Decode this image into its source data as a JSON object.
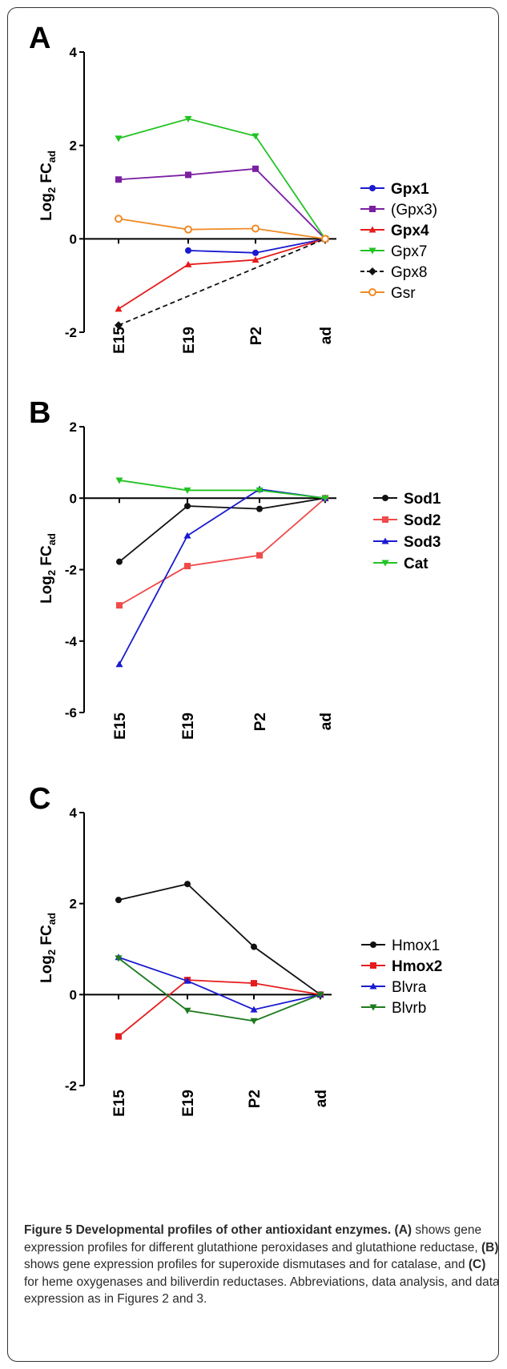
{
  "chart_data": [
    {
      "type": "line",
      "panel": "A",
      "ylabel": "Log2 FCad",
      "categories": [
        "E15",
        "E19",
        "P2",
        "ad"
      ],
      "ylim": [
        -2,
        4
      ],
      "yticks": [
        "4",
        "2",
        "0",
        "-2"
      ],
      "series": [
        {
          "name": "Gpx1",
          "bold": true,
          "color": "#1a1ad0",
          "marker": "circle",
          "values": [
            null,
            -0.25,
            -0.3,
            0
          ]
        },
        {
          "name": "(Gpx3)",
          "bold": false,
          "color": "#7b1fa2",
          "marker": "square",
          "values": [
            1.27,
            1.37,
            1.5,
            0
          ]
        },
        {
          "name": "Gpx4",
          "bold": true,
          "color": "#e51c1c",
          "marker": "triangle-up",
          "values": [
            -1.5,
            -0.55,
            -0.45,
            0
          ]
        },
        {
          "name": "Gpx7",
          "bold": false,
          "color": "#22c322",
          "marker": "triangle-down",
          "values": [
            2.15,
            2.57,
            2.2,
            0
          ]
        },
        {
          "name": "Gpx8",
          "bold": false,
          "color": "#111111",
          "marker": "diamond",
          "dashed": true,
          "values": [
            -1.85,
            null,
            null,
            0
          ]
        },
        {
          "name": "Gsr",
          "bold": false,
          "color": "#f08a24",
          "marker": "circle-open",
          "values": [
            0.43,
            0.2,
            0.22,
            0
          ]
        }
      ]
    },
    {
      "type": "line",
      "panel": "B",
      "ylabel": "Log2 FCad",
      "categories": [
        "E15",
        "E19",
        "P2",
        "ad"
      ],
      "ylim": [
        -6,
        2
      ],
      "yticks": [
        "2",
        "0",
        "-2",
        "-4",
        "-6"
      ],
      "series": [
        {
          "name": "Sod1",
          "bold": true,
          "color": "#111111",
          "marker": "circle",
          "values": [
            -1.78,
            -0.22,
            -0.3,
            0
          ]
        },
        {
          "name": "Sod2",
          "bold": true,
          "color": "#f04a4a",
          "marker": "square",
          "values": [
            -3.0,
            -1.9,
            -1.6,
            0
          ]
        },
        {
          "name": "Sod3",
          "bold": true,
          "color": "#1a1ad0",
          "marker": "triangle-up",
          "values": [
            -4.65,
            -1.05,
            0.25,
            0
          ]
        },
        {
          "name": "Cat",
          "bold": true,
          "color": "#22c322",
          "marker": "triangle-down",
          "values": [
            0.5,
            0.22,
            0.22,
            0
          ]
        }
      ]
    },
    {
      "type": "line",
      "panel": "C",
      "ylabel": "Log2 FCad",
      "categories": [
        "E15",
        "E19",
        "P2",
        "ad"
      ],
      "ylim": [
        -2,
        4
      ],
      "yticks": [
        "4",
        "2",
        "0",
        "-2"
      ],
      "series": [
        {
          "name": "Hmox1",
          "bold": false,
          "color": "#111111",
          "marker": "circle",
          "values": [
            2.08,
            2.43,
            1.05,
            0
          ]
        },
        {
          "name": "Hmox2",
          "bold": true,
          "color": "#e51c1c",
          "marker": "square",
          "values": [
            -0.92,
            0.32,
            0.25,
            0
          ]
        },
        {
          "name": "Blvra",
          "bold": false,
          "color": "#1a1ad0",
          "marker": "triangle-up",
          "values": [
            0.82,
            0.3,
            -0.33,
            0
          ]
        },
        {
          "name": "Blvrb",
          "bold": false,
          "color": "#1e7a1e",
          "marker": "triangle-down",
          "values": [
            0.8,
            -0.35,
            -0.58,
            0
          ]
        }
      ]
    }
  ],
  "caption": {
    "title": "Figure 5 Developmental profiles of other antioxidant enzymes.",
    "tag_a": "(A)",
    "text_a": " shows gene expression profiles for different glutathione peroxidases and glutathione reductase, ",
    "tag_b": "(B)",
    "text_b": " shows gene expression profiles for superoxide dismutases and for catalase, and ",
    "tag_c": "(C)",
    "text_c": " for heme oxygenases and biliverdin reductases. Abbreviations, data analysis, and data expression as in Figures 2 and 3."
  }
}
